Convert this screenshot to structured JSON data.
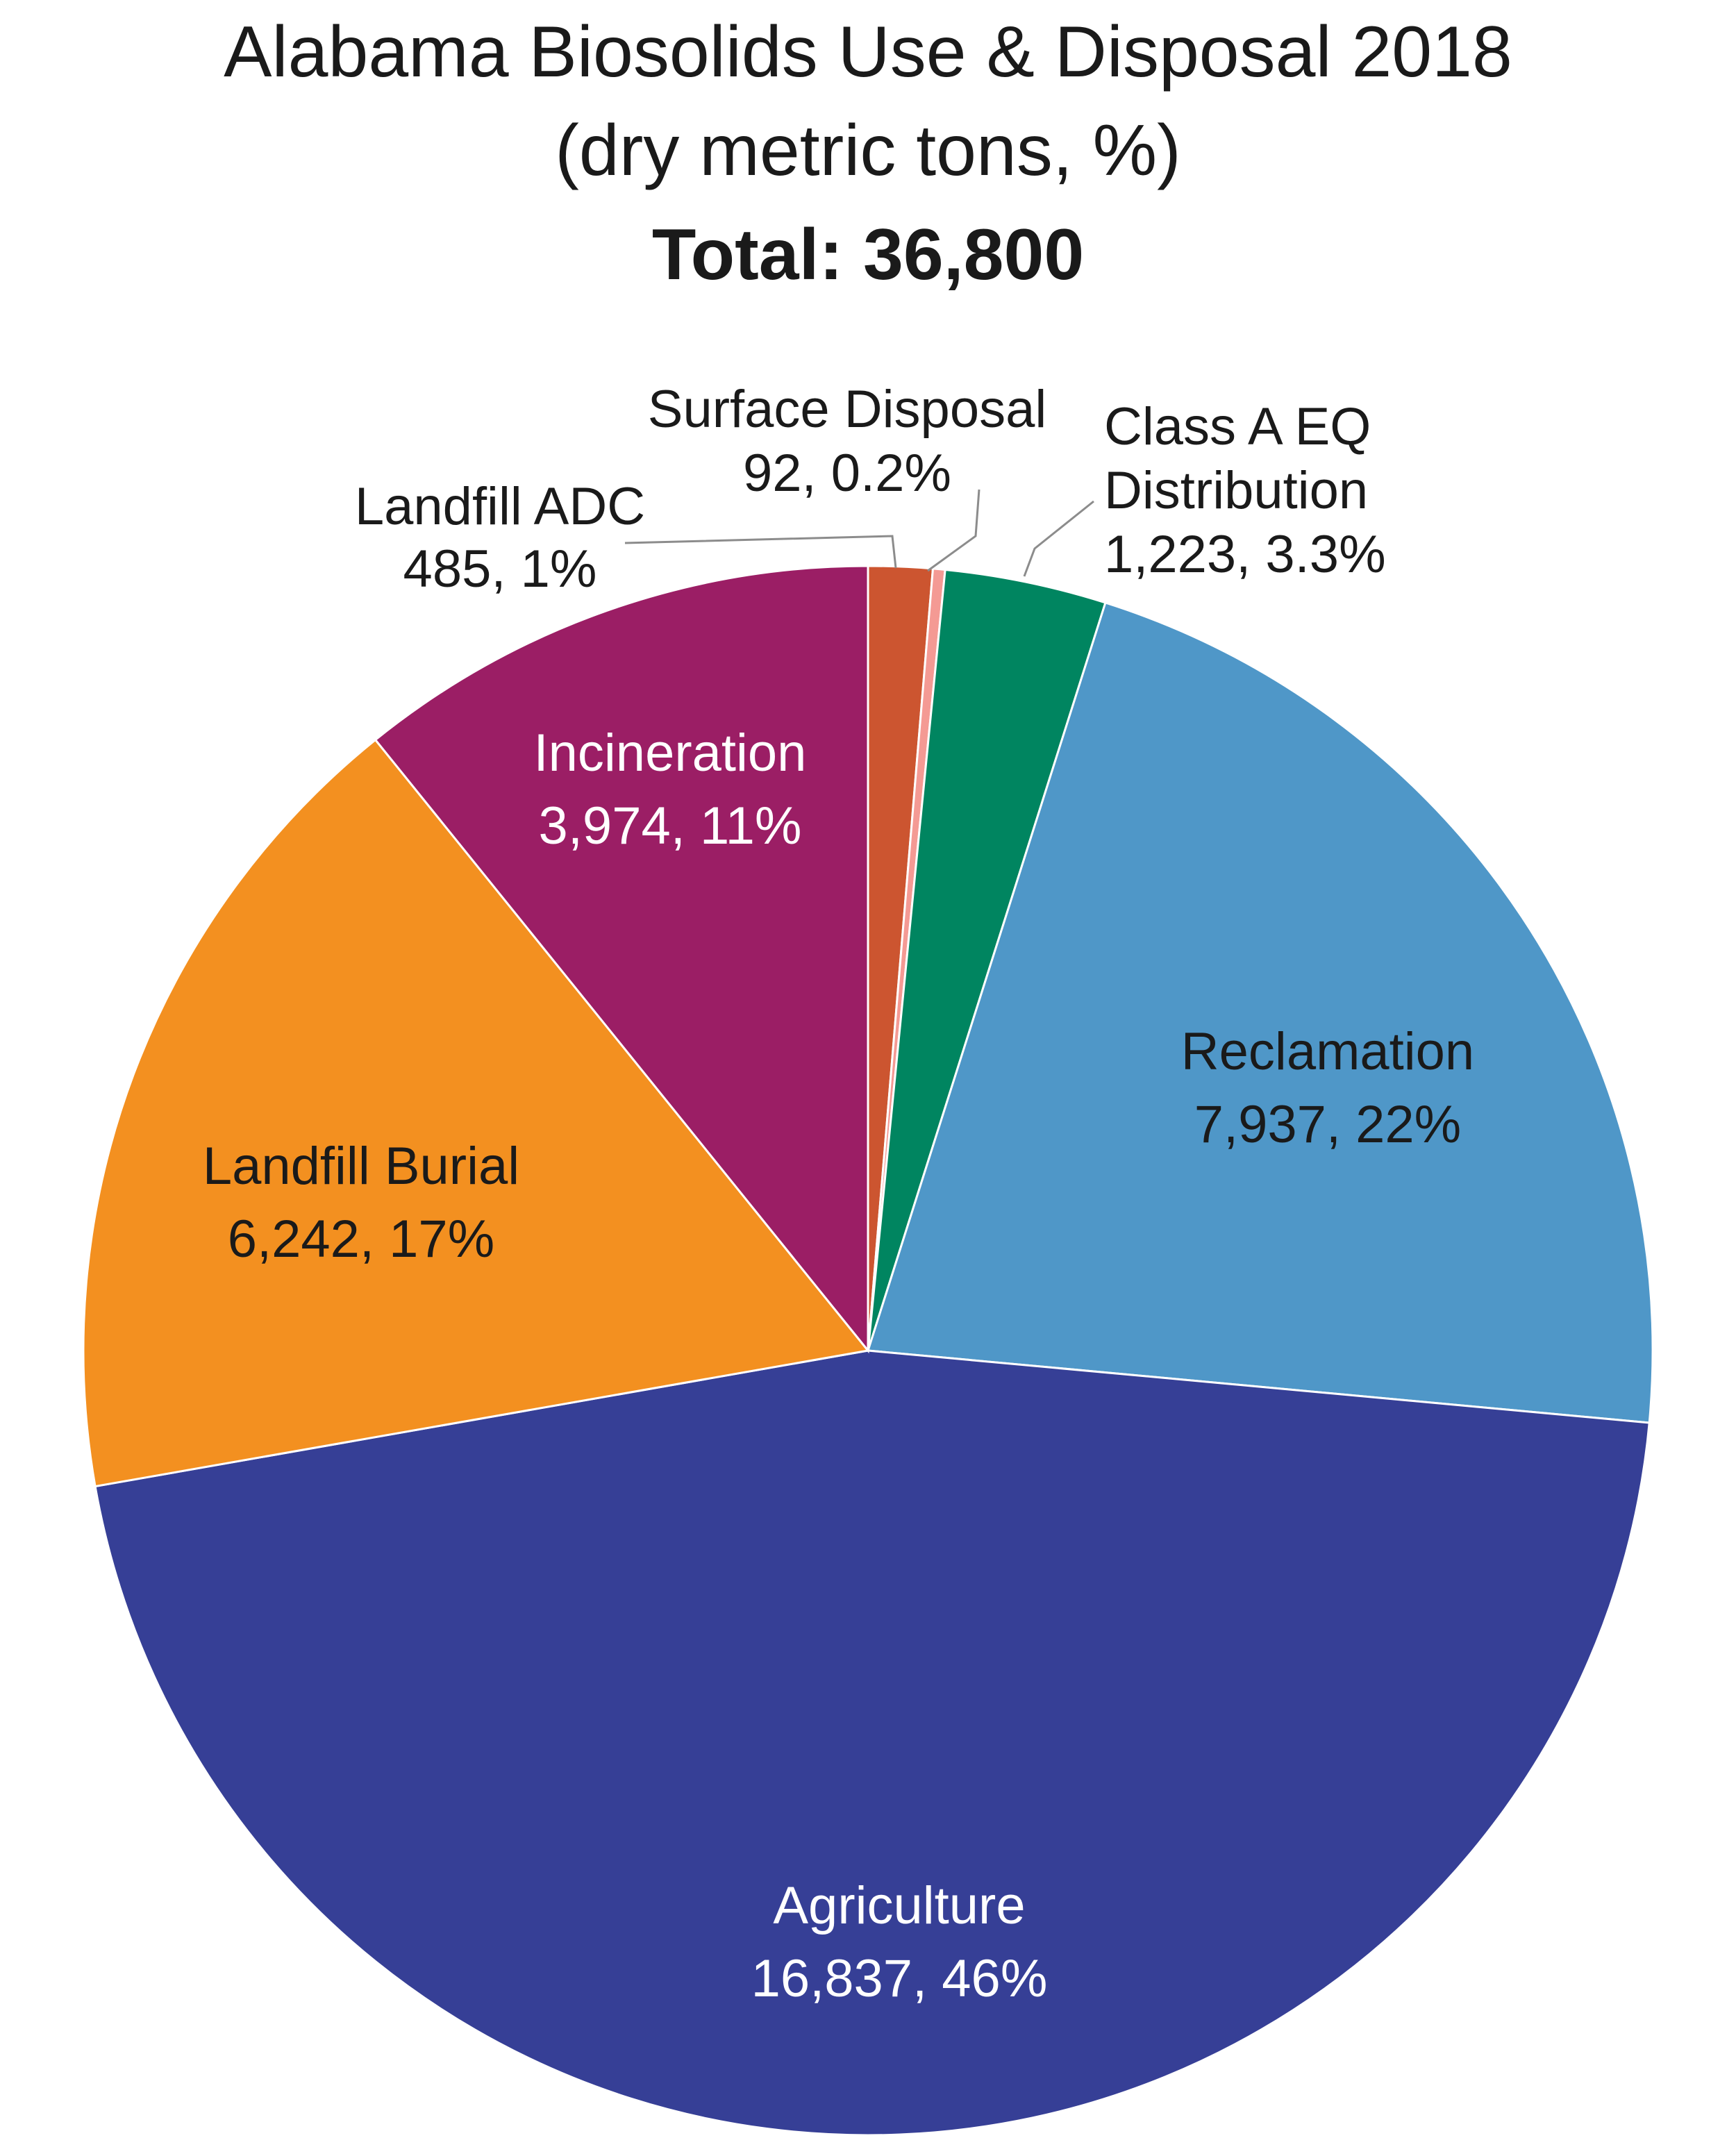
{
  "chart_data": {
    "type": "pie",
    "title": [
      "Alabama Biosolids Use & Disposal 2018",
      "(dry metric tons, %)",
      "Total: 36,800"
    ],
    "start_angle_deg": 0,
    "direction": "clockwise",
    "slices": [
      {
        "name": "Landfill ADC",
        "value": 485,
        "value_label": "485, 1%",
        "color": "#cc5530"
      },
      {
        "name": "Surface Disposal",
        "value": 92,
        "value_label": "92, 0.2%",
        "color": "#f49a94"
      },
      {
        "name": "Class A EQ Distribution",
        "name_lines": [
          "Class A EQ",
          "Distribution"
        ],
        "value": 1223,
        "value_label": "1,223, 3.3%",
        "color": "#008560"
      },
      {
        "name": "Reclamation",
        "value": 7937,
        "value_label": "7,937, 22%",
        "color": "#4f97c8"
      },
      {
        "name": "Agriculture",
        "value": 16837,
        "value_label": "16,837, 46%",
        "color": "#363f96"
      },
      {
        "name": "Landfill Burial",
        "value": 6242,
        "value_label": "6,242, 17%",
        "color": "#f39020"
      },
      {
        "name": "Incineration",
        "value": 3974,
        "value_label": "3,974, 11%",
        "color": "#9b1e65"
      }
    ]
  }
}
